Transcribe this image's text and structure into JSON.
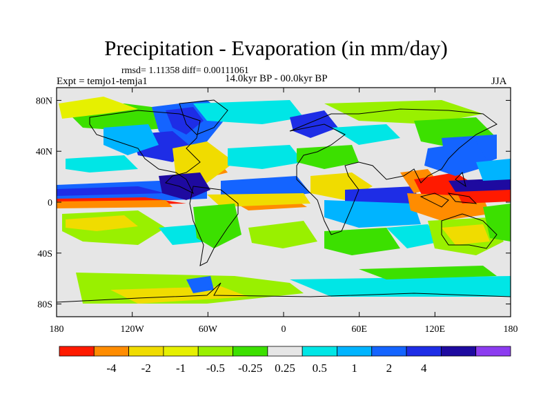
{
  "title": "Precipitation - Evaporation (in mm/day)",
  "stats": "rmsd= 1.11358 diff= 0.00111061",
  "experiment": "Expt = temjo1-temja1",
  "period": "14.0kyr BP - 00.0kyr BP",
  "season": "JJA",
  "colors": {
    "ocean_neutral": "#e6e6e6",
    "coastline": "#000000"
  },
  "axes": {
    "lat_ticks": [
      {
        "label": "80N",
        "lat": 80
      },
      {
        "label": "40N",
        "lat": 40
      },
      {
        "label": "0",
        "lat": 0
      },
      {
        "label": "40S",
        "lat": -40
      },
      {
        "label": "80S",
        "lat": -80
      }
    ],
    "lon_ticks": [
      {
        "label": "180",
        "lon": -180
      },
      {
        "label": "120W",
        "lon": -120
      },
      {
        "label": "60W",
        "lon": -60
      },
      {
        "label": "0",
        "lon": 0
      },
      {
        "label": "60E",
        "lon": 60
      },
      {
        "label": "120E",
        "lon": 120
      },
      {
        "label": "180",
        "lon": 180
      }
    ],
    "lat_range": [
      -90,
      90
    ],
    "lon_range": [
      -180,
      180
    ]
  },
  "colorbar": {
    "colors": [
      "#ff1a00",
      "#ff8c00",
      "#f0dc00",
      "#e6f000",
      "#99f000",
      "#3ce000",
      "#e6e6e6",
      "#00e6e6",
      "#00b4ff",
      "#1464ff",
      "#1e2de6",
      "#1e0aa0",
      "#8c3cf0"
    ],
    "labels": [
      "-4",
      "-2",
      "-1",
      "-0.5",
      "-0.25",
      "0.25",
      "0.5",
      "1",
      "2",
      "4"
    ]
  },
  "chart_data": {
    "type": "heatmap",
    "title": "Precipitation - Evaporation (in mm/day)",
    "variable": "P-E difference",
    "units": "mm/day",
    "levels": [
      -4,
      -2,
      -1,
      -0.5,
      -0.25,
      0.25,
      0.5,
      1,
      2,
      4
    ],
    "fields": [
      {
        "name": "itcz-pacific-band",
        "lon_range": [
          -180,
          -80
        ],
        "lat_range": [
          3,
          13
        ],
        "value": 3
      },
      {
        "name": "itcz-south-pacific-dry",
        "lon_range": [
          -180,
          -90
        ],
        "lat_range": [
          -5,
          3
        ],
        "value": -2
      },
      {
        "name": "south-pacific-dry",
        "lon_range": [
          -175,
          -135
        ],
        "lat_range": [
          -28,
          -20
        ],
        "value": -1
      },
      {
        "name": "south-pacific-green",
        "lon_range": [
          -165,
          -120
        ],
        "lat_range": [
          -38,
          -12
        ],
        "value": -0.5
      },
      {
        "name": "atlantic-itcz",
        "lon_range": [
          -60,
          -15
        ],
        "lat_range": [
          0,
          12
        ],
        "value": 1.5
      },
      {
        "name": "atlantic-dry",
        "lon_range": [
          -45,
          -10
        ],
        "lat_range": [
          -6,
          0
        ],
        "value": -3
      },
      {
        "name": "indian-ocean-band",
        "lon_range": [
          50,
          100
        ],
        "lat_range": [
          -10,
          5
        ],
        "value": 2
      },
      {
        "name": "warm-pool-dry",
        "lon_range": [
          95,
          160
        ],
        "lat_range": [
          -5,
          20
        ],
        "value": -3
      },
      {
        "name": "west-pacific-wet",
        "lon_range": [
          120,
          170
        ],
        "lat_range": [
          20,
          35
        ],
        "value": 2
      },
      {
        "name": "north-atlantic-wet",
        "lon_range": [
          -70,
          -20
        ],
        "lat_range": [
          40,
          65
        ],
        "value": 2
      },
      {
        "name": "arctic-wet",
        "lon_range": [
          -120,
          60
        ],
        "lat_range": [
          65,
          85
        ],
        "value": 1
      },
      {
        "name": "southern-ocean-mixed",
        "lon_range": [
          -180,
          180
        ],
        "lat_range": [
          -65,
          -50
        ],
        "value": -0.5
      }
    ]
  }
}
